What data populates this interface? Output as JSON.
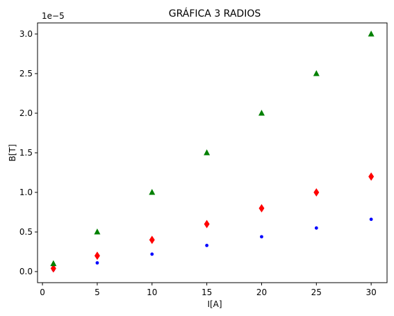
{
  "chart_data": {
    "type": "scatter",
    "title": "GRÁFICA 3 RADIOS",
    "xlabel": "I[A]",
    "ylabel": "B[T]",
    "y_offset_label": "1e−5",
    "y_scale_factor": 1e-05,
    "xlim": [
      -0.45,
      31.45
    ],
    "ylim": [
      -0.14,
      3.14
    ],
    "xticks": [
      0,
      5,
      10,
      15,
      20,
      25,
      30
    ],
    "xtick_labels": [
      "0",
      "5",
      "10",
      "15",
      "20",
      "25",
      "30"
    ],
    "yticks": [
      0.0,
      0.5,
      1.0,
      1.5,
      2.0,
      2.5,
      3.0
    ],
    "ytick_labels": [
      "0.0",
      "0.5",
      "1.0",
      "1.5",
      "2.0",
      "2.5",
      "3.0"
    ],
    "grid": false,
    "x": [
      1,
      5,
      10,
      15,
      20,
      25,
      30
    ],
    "series": [
      {
        "marker": "circle",
        "color": "#0000ff",
        "values": [
          0.022,
          0.11,
          0.22,
          0.33,
          0.44,
          0.55,
          0.66
        ]
      },
      {
        "marker": "diamond",
        "color": "#ff0000",
        "values": [
          0.04,
          0.2,
          0.4,
          0.6,
          0.8,
          1.0,
          1.2
        ]
      },
      {
        "marker": "triangle",
        "color": "#008000",
        "values": [
          0.1,
          0.5,
          1.0,
          1.5,
          2.0,
          2.5,
          3.0
        ]
      }
    ]
  }
}
